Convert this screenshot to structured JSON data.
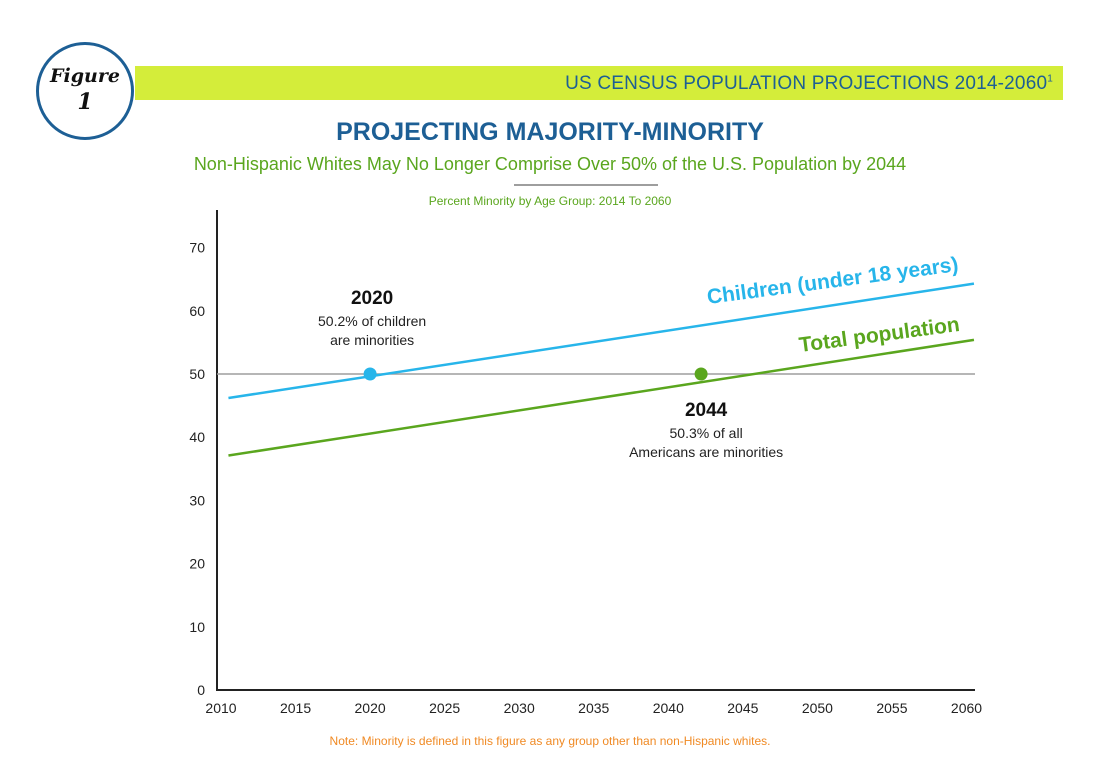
{
  "header": {
    "badge_word": "Figure",
    "badge_number": "1",
    "banner_title": "US CENSUS POPULATION PROJECTIONS 2014-2060",
    "banner_sup": "1"
  },
  "colors": {
    "banner": "#d4ed3a",
    "title": "#1d5f95",
    "children": "#27b5ea",
    "total": "#5aa61e",
    "reference": "#9e9e9e",
    "note": "#f08a24"
  },
  "chart_data": {
    "type": "line",
    "title": "PROJECTING MAJORITY-MINORITY",
    "subtitle": "Non-Hispanic Whites May No Longer Comprise Over 50%  of the U.S. Population by 2044",
    "chart_title": "Percent Minority by Age Group: 2014 To 2060",
    "xlabel": "",
    "ylabel": "",
    "xlim": [
      2010,
      2061
    ],
    "ylim": [
      0,
      75
    ],
    "x_ticks": [
      "2010",
      "2015",
      "2020",
      "2025",
      "2030",
      "2035",
      "2040",
      "2045",
      "2050",
      "2055",
      "2060"
    ],
    "y_ticks": [
      "0",
      "10",
      "20",
      "30",
      "40",
      "50",
      "60",
      "70"
    ],
    "grid": false,
    "reference_line": 50,
    "series": [
      {
        "name": "Children (under 18 years)",
        "x": [
          2010.5,
          2060.5
        ],
        "y": [
          46.2,
          64.3
        ]
      },
      {
        "name": "Total population",
        "x": [
          2010.5,
          2060.5
        ],
        "y": [
          37.1,
          55.4
        ]
      }
    ],
    "annotations": [
      {
        "year": "2020",
        "line1": "50.2% of children",
        "line2": "are minorities",
        "x": 2020,
        "y": 50,
        "series": 0
      },
      {
        "year": "2044",
        "line1": "50.3% of all",
        "line2": "Americans are minorities",
        "x": 2042.2,
        "y": 50,
        "series": 1
      }
    ]
  },
  "note": "Note: Minority is defined in this figure as any group other than non-Hispanic whites."
}
